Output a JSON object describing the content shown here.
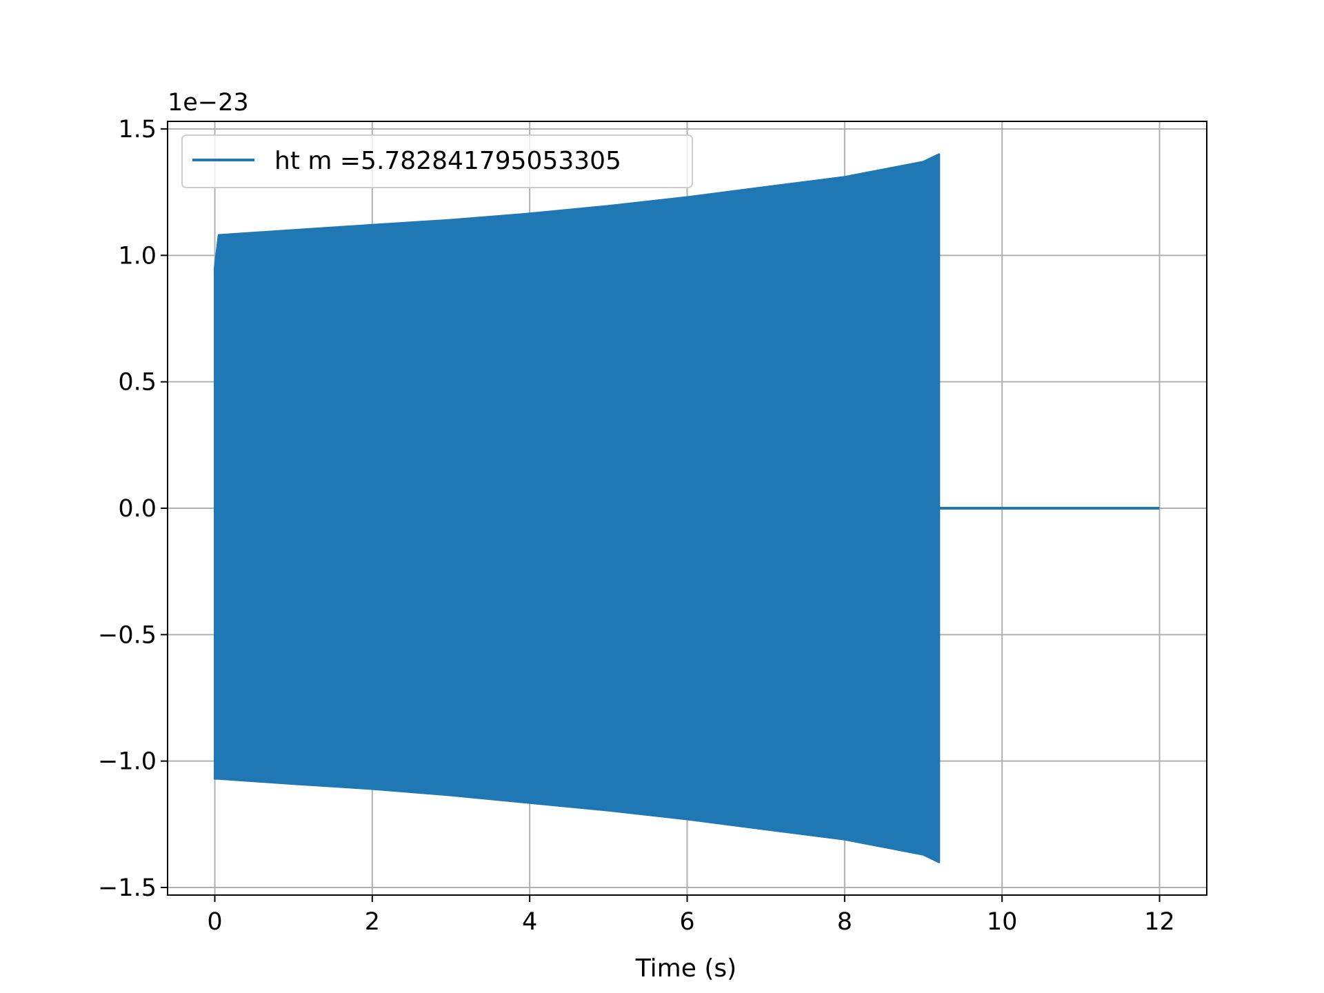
{
  "chart_data": {
    "type": "line",
    "title": "",
    "xlabel": "Time (s)",
    "ylabel": "",
    "y_offset_label": "1e−23",
    "xlim": [
      -0.6,
      12.6
    ],
    "ylim": [
      -1.53,
      1.53
    ],
    "x_ticks": [
      0,
      2,
      4,
      6,
      8,
      10,
      12
    ],
    "x_tick_labels": [
      "0",
      "2",
      "4",
      "6",
      "8",
      "10",
      "12"
    ],
    "y_ticks": [
      -1.5,
      -1.0,
      -0.5,
      0.0,
      0.5,
      1.0,
      1.5
    ],
    "y_tick_labels": [
      "−1.5",
      "−1.0",
      "−0.5",
      "0.0",
      "0.5",
      "1.0",
      "1.5"
    ],
    "grid": true,
    "legend_position": "upper-left",
    "color": "#1f77b4",
    "series": [
      {
        "name": "ht m =5.782841795053305",
        "envelope": {
          "x": [
            0.0,
            0.05,
            1.0,
            2.0,
            3.0,
            4.0,
            5.0,
            6.0,
            7.0,
            8.0,
            9.0,
            9.2
          ],
          "upper": [
            0.95,
            1.08,
            1.1,
            1.12,
            1.14,
            1.165,
            1.195,
            1.23,
            1.27,
            1.31,
            1.37,
            1.4
          ],
          "lower": [
            -1.07,
            -1.07,
            -1.09,
            -1.11,
            -1.135,
            -1.165,
            -1.195,
            -1.23,
            -1.27,
            -1.31,
            -1.37,
            -1.4
          ]
        },
        "flat_segment": {
          "x": [
            9.2,
            12.0
          ],
          "y": 0.0
        }
      }
    ]
  }
}
